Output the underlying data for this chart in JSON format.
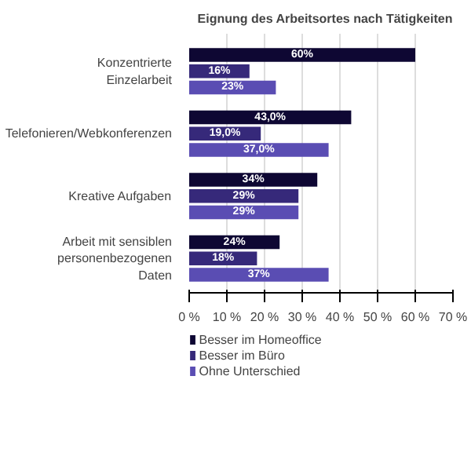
{
  "chart_data": {
    "type": "bar",
    "orientation": "horizontal",
    "title": "Eignung des Arbeitsortes nach Tätigkeiten",
    "categories": [
      "Konzentrierte Einzelarbeit",
      "Telefonieren/Webkonferenzen",
      "Kreative Aufgaben",
      "Arbeit mit sensiblen personenbezogenen Daten"
    ],
    "series": [
      {
        "name": "Besser im Homeoffice",
        "color": "#0e0733",
        "values": [
          60,
          43,
          34,
          24
        ],
        "value_labels": [
          "60%",
          "43,0%",
          "34%",
          "24%"
        ]
      },
      {
        "name": "Besser im Büro",
        "color": "#36297a",
        "values": [
          16,
          19,
          29,
          18
        ],
        "value_labels": [
          "16%",
          "19,0%",
          "29%",
          "18%"
        ]
      },
      {
        "name": "Ohne Unterschied",
        "color": "#5a4db3",
        "values": [
          23,
          37,
          29,
          37
        ],
        "value_labels": [
          "23%",
          "37,0%",
          "29%",
          "37%"
        ]
      }
    ],
    "xlim": [
      0,
      70
    ],
    "xticks": [
      {
        "value": 0,
        "label": "0 %"
      },
      {
        "value": 10,
        "label": "10 %"
      },
      {
        "value": 20,
        "label": "20 %"
      },
      {
        "value": 30,
        "label": "30 %"
      },
      {
        "value": 40,
        "label": "40 %"
      },
      {
        "value": 50,
        "label": "50 %"
      },
      {
        "value": 60,
        "label": "60 %"
      },
      {
        "value": 70,
        "label": "70 %"
      }
    ],
    "grid": "x",
    "legend": "bottom left"
  }
}
